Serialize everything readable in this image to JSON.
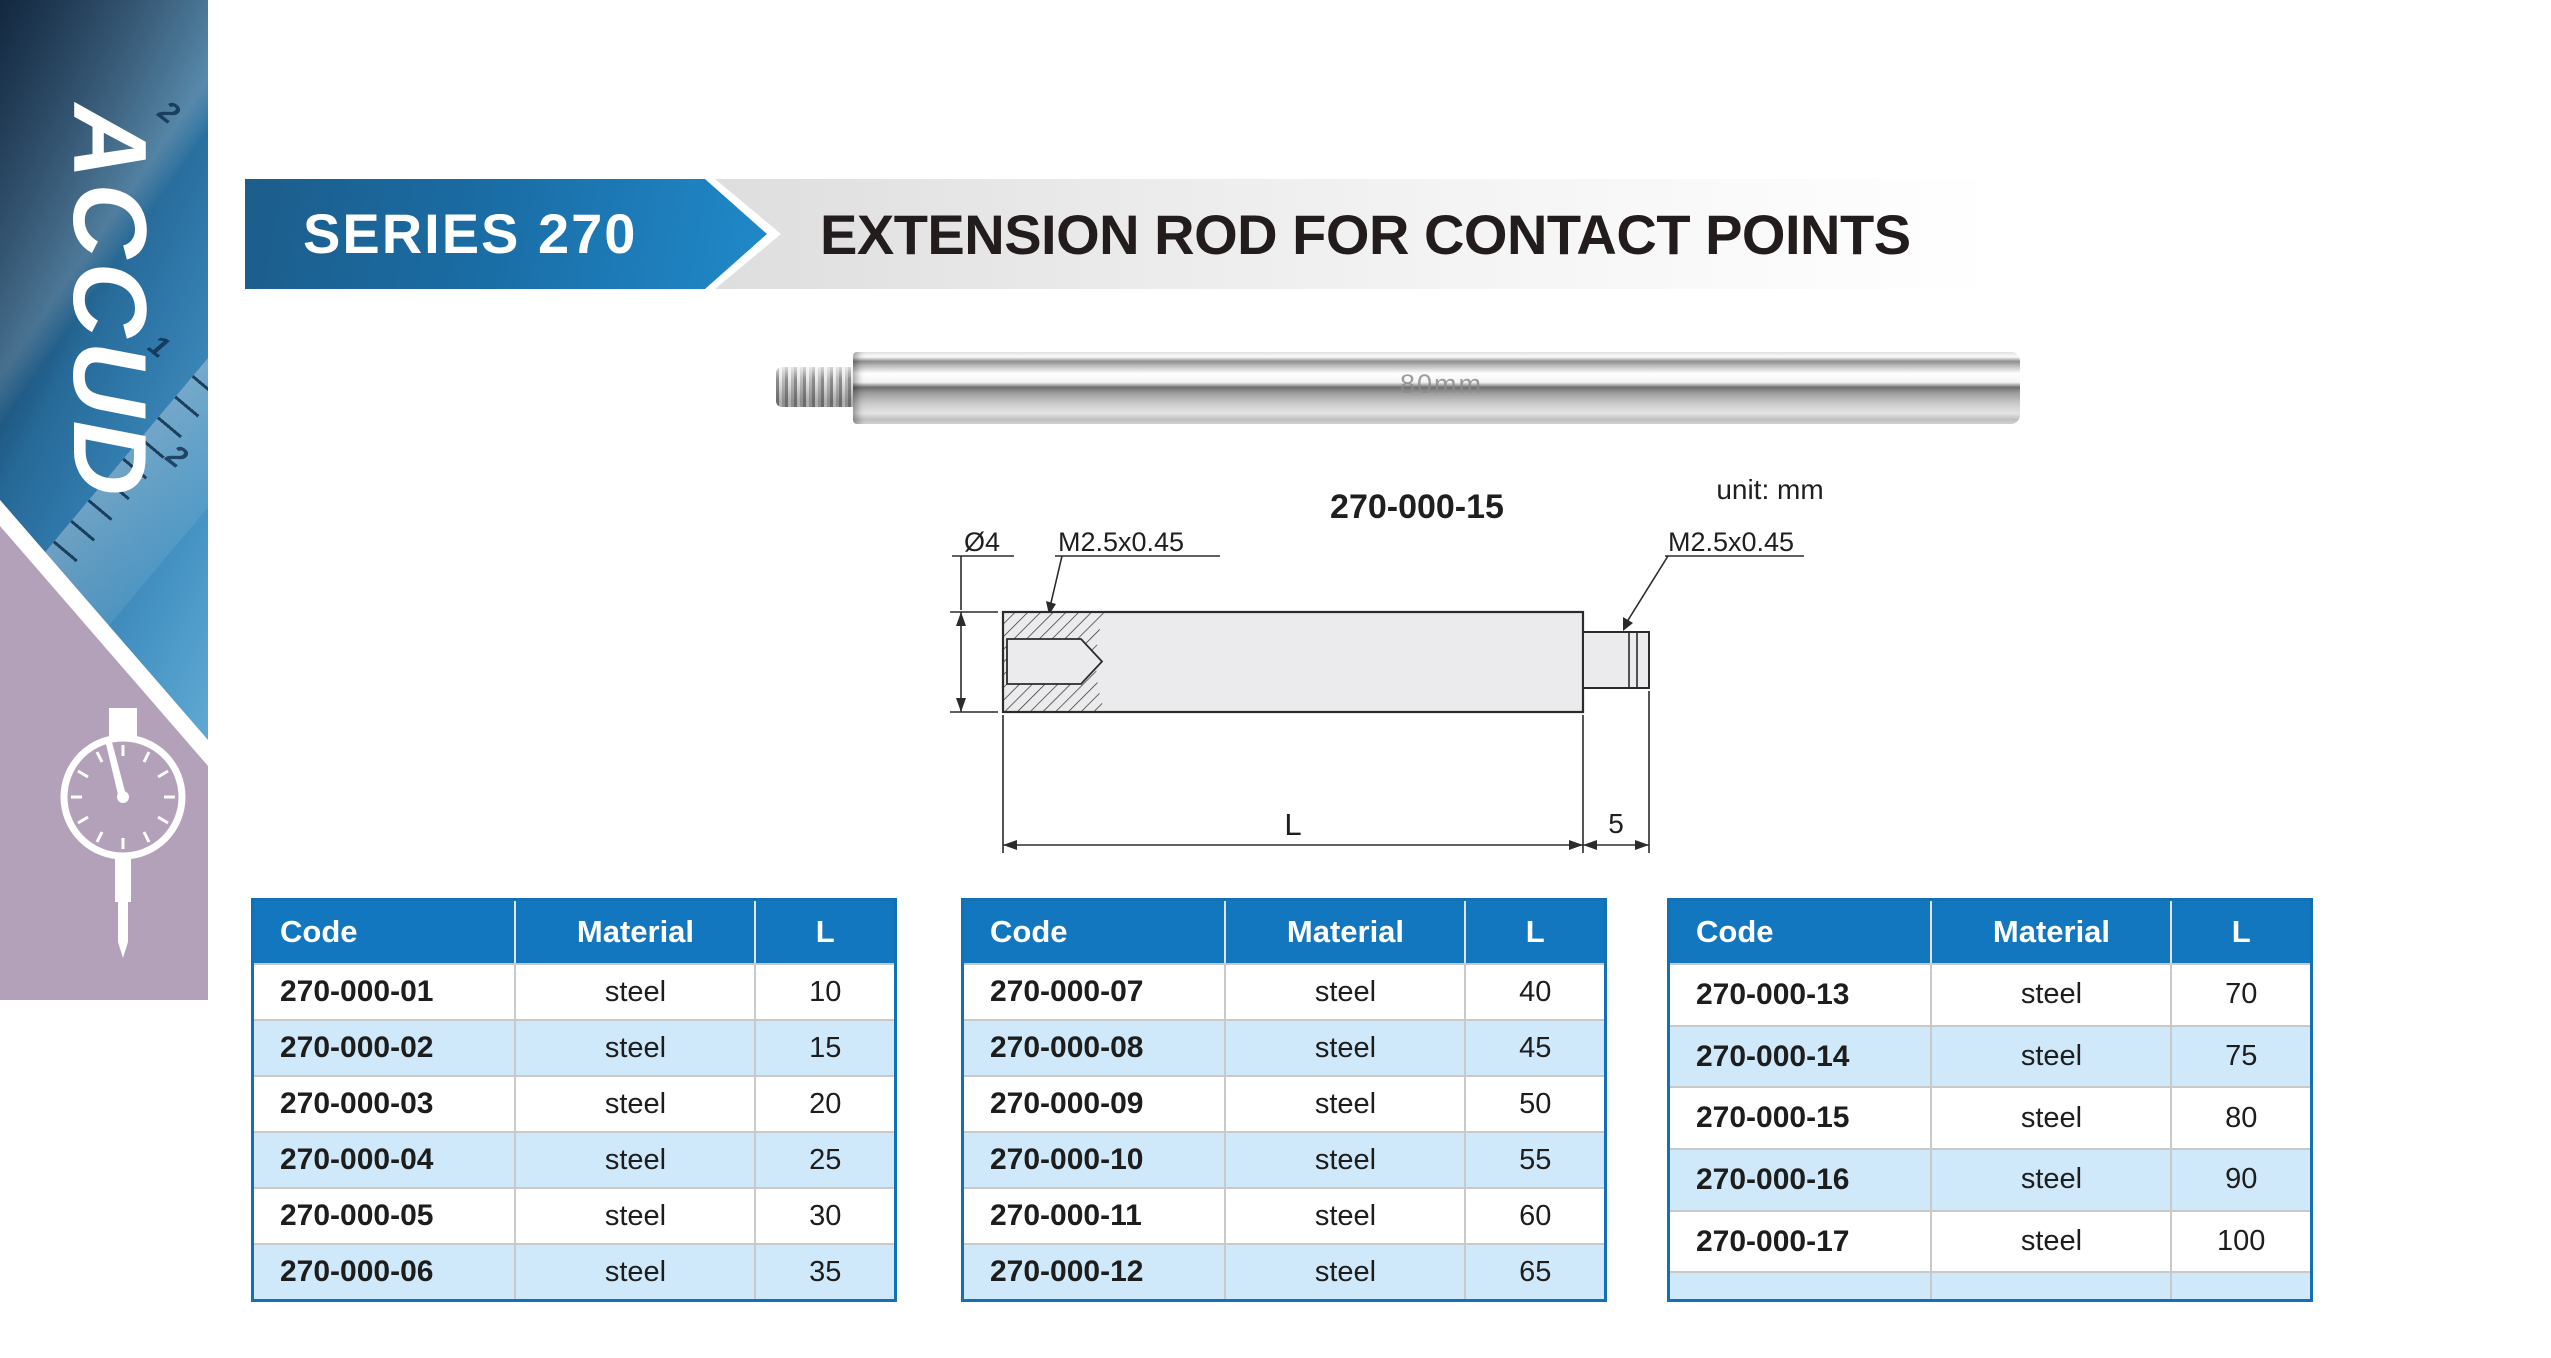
{
  "sidebar": {
    "brand": "ACCUD",
    "photo_numerals": [
      "2",
      "1",
      "2"
    ]
  },
  "banner": {
    "series": "SERIES 270",
    "title": "EXTENSION ROD FOR CONTACT POINTS"
  },
  "photo": {
    "engraving": "80mm"
  },
  "diagram": {
    "model": "270-000-15",
    "unit": "unit: mm",
    "diameter": "Ø4",
    "thread_left": "M2.5x0.45",
    "thread_right": "M2.5x0.45",
    "length": "L",
    "tip": "5"
  },
  "tables": {
    "headers": [
      "Code",
      "Material",
      "L"
    ],
    "groups": [
      [
        [
          "270-000-01",
          "steel",
          "10"
        ],
        [
          "270-000-02",
          "steel",
          "15"
        ],
        [
          "270-000-03",
          "steel",
          "20"
        ],
        [
          "270-000-04",
          "steel",
          "25"
        ],
        [
          "270-000-05",
          "steel",
          "30"
        ],
        [
          "270-000-06",
          "steel",
          "35"
        ]
      ],
      [
        [
          "270-000-07",
          "steel",
          "40"
        ],
        [
          "270-000-08",
          "steel",
          "45"
        ],
        [
          "270-000-09",
          "steel",
          "50"
        ],
        [
          "270-000-10",
          "steel",
          "55"
        ],
        [
          "270-000-11",
          "steel",
          "60"
        ],
        [
          "270-000-12",
          "steel",
          "65"
        ]
      ],
      [
        [
          "270-000-13",
          "steel",
          "70"
        ],
        [
          "270-000-14",
          "steel",
          "75"
        ],
        [
          "270-000-15",
          "steel",
          "80"
        ],
        [
          "270-000-16",
          "steel",
          "90"
        ],
        [
          "270-000-17",
          "steel",
          "100"
        ],
        [
          "",
          "",
          ""
        ]
      ]
    ]
  },
  "colors": {
    "accent_blue": "#1377c0",
    "table_border": "#1470b4",
    "row_alt_blue": "#cfe9fa",
    "banner_dark_blue": "#1c5d8b",
    "banner_light_blue": "#2089c9",
    "sidebar_mauve": "#b3a1b9",
    "title_text": "#221c1c"
  }
}
